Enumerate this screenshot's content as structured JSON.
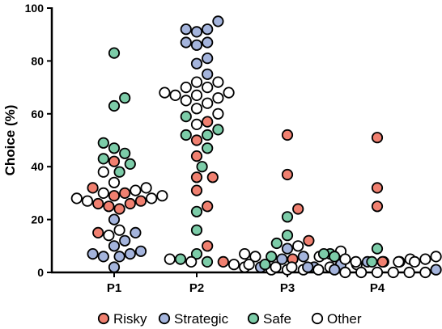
{
  "chart_data": {
    "type": "scatter",
    "chart_style": "dot-plot (beeswarm)",
    "ylabel": "Choice (%)",
    "ylim": [
      0,
      100
    ],
    "yticks": [
      0,
      20,
      40,
      60,
      80,
      100
    ],
    "categories": [
      "P1",
      "P2",
      "P3",
      "P4"
    ],
    "legend_position": "bottom",
    "grid": false,
    "series": [
      {
        "name": "Risky",
        "color": "#f08070",
        "values": {
          "P1": [
            42,
            32,
            30,
            29,
            27,
            26,
            26,
            25,
            24,
            15
          ],
          "P2": [
            57,
            50,
            44,
            36,
            36,
            31,
            25,
            10
          ],
          "P3": [
            52,
            37,
            24,
            12,
            5,
            4
          ],
          "P4": [
            51,
            32,
            25,
            4,
            3
          ]
        }
      },
      {
        "name": "Strategic",
        "color": "#a4b4dc",
        "values": {
          "P1": [
            20,
            15,
            12,
            10,
            8,
            7,
            7,
            6,
            6,
            2
          ],
          "P2": [
            95,
            92,
            92,
            91,
            87,
            87,
            86,
            81,
            79,
            75
          ],
          "P3": [
            9,
            6,
            5,
            4,
            3,
            2,
            2
          ],
          "P4": [
            2,
            1,
            1
          ]
        }
      },
      {
        "name": "Safe",
        "color": "#7ccca8",
        "values": {
          "P1": [
            83,
            66,
            63,
            49,
            47,
            45,
            43,
            41,
            38
          ],
          "P2": [
            59,
            54,
            52,
            52,
            47,
            40,
            23,
            16,
            7
          ],
          "P3": [
            21,
            14,
            11,
            7,
            6,
            5,
            4,
            4
          ],
          "P4": [
            9,
            7,
            6,
            4,
            3,
            2
          ]
        }
      },
      {
        "name": "Other",
        "color": "#ffffff",
        "values": {
          "P1": [
            38,
            34,
            32,
            31,
            30,
            29,
            28,
            28,
            27,
            16,
            14
          ],
          "P2": [
            72,
            72,
            70,
            70,
            68,
            68,
            67,
            67,
            66,
            65,
            64,
            62,
            60,
            56
          ],
          "P3": [
            10,
            8,
            7,
            6,
            6,
            5,
            5,
            4,
            4,
            3,
            3,
            2,
            2,
            1,
            1,
            1
          ],
          "P4": [
            6,
            5,
            5,
            4,
            4,
            4,
            3,
            3,
            2,
            2,
            2,
            1,
            1,
            0,
            0,
            0,
            0,
            0,
            0
          ]
        }
      }
    ]
  }
}
